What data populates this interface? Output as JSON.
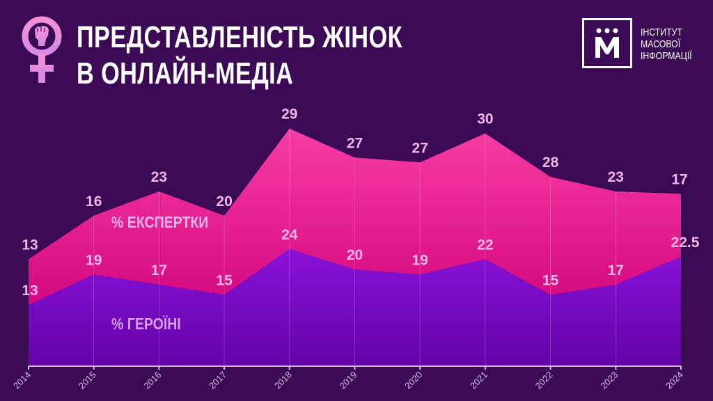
{
  "header": {
    "title_line1": "ПРЕДСТАВЛЕНІСТЬ ЖІНОК",
    "title_line2": "В ОНЛАЙН-МЕДІА",
    "icon": "feminist-fist-venus-icon"
  },
  "brand": {
    "logo_letter": "М",
    "line1": "ІНСТИТУТ",
    "line2": "МАСОВОЇ",
    "line3": "ІНФОРМАЦІЇ"
  },
  "colors": {
    "background": "#3a0a54",
    "experts_top": "#ff4ab0",
    "experts_bottom": "#d4087f",
    "heroines_top": "#8e14de",
    "heroines_bottom": "#6303a8",
    "label_text": "#f7b4ec",
    "axis": "#d9b8ea",
    "icon_pink": "#f08ad8"
  },
  "chart_data": {
    "type": "area",
    "title": "ПРЕДСТАВЛЕНІСТЬ ЖІНОК В ОНЛАЙН-МЕДІА",
    "xlabel": "",
    "ylabel": "",
    "categories": [
      "2014",
      "2015",
      "2016",
      "2017",
      "2018",
      "2019",
      "2020",
      "2021",
      "2022",
      "2023",
      "2024"
    ],
    "series": [
      {
        "name": "% ЕКСПЕРТКИ",
        "values": [
          13,
          16,
          23,
          20,
          29,
          27,
          27,
          30,
          28,
          23,
          17
        ]
      },
      {
        "name": "% ГЕРОЇНІ",
        "values": [
          13,
          19,
          17,
          15,
          24,
          20,
          19,
          22,
          15,
          17,
          22.5
        ]
      }
    ],
    "value_labels": {
      "experts": [
        "13",
        "16",
        "23",
        "20",
        "29",
        "27",
        "27",
        "30",
        "28",
        "23",
        "17"
      ],
      "heroines": [
        "13",
        "19",
        "17",
        "15",
        "24",
        "20",
        "19",
        "22",
        "15",
        "17",
        "22.5"
      ]
    },
    "series_labels": {
      "experts": "% ЕКСПЕРТКИ",
      "heroines": "% ГЕРОЇНІ"
    },
    "grid": "vertical lines at each year",
    "legend": "inline labels inside areas"
  }
}
